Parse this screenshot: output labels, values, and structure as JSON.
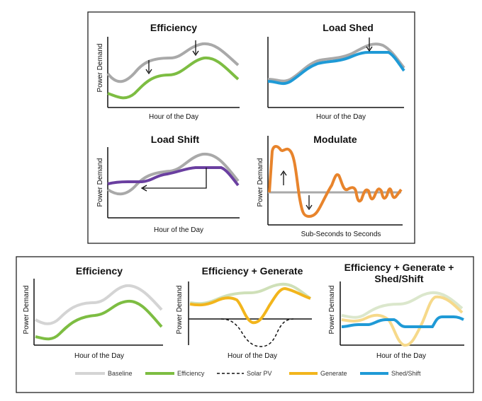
{
  "top": {
    "panels": [
      {
        "title": "Efficiency",
        "ylabel": "Power Demand",
        "xlabel": "Hour of the Day"
      },
      {
        "title": "Load Shed",
        "ylabel": "",
        "xlabel": "Hour of the Day"
      },
      {
        "title": "Load Shift",
        "ylabel": "Power Demand",
        "xlabel": "Hour of the Day"
      },
      {
        "title": "Modulate",
        "ylabel": "Power Demand",
        "xlabel": "Sub-Seconds to Seconds"
      }
    ]
  },
  "bottom": {
    "panels": [
      {
        "title": "Efficiency",
        "title2": "",
        "ylabel": "Power Demand",
        "xlabel": "Hour of the Day"
      },
      {
        "title": "Efficiency + Generate",
        "title2": "",
        "ylabel": "Power Demand",
        "xlabel": "Hour of the Day"
      },
      {
        "title": "Efficiency + Generate +",
        "title2": "Shed/Shift",
        "ylabel": "Power Demand",
        "xlabel": "Hour of the Day"
      }
    ],
    "legend": [
      {
        "label": "Baseline",
        "color": "#d4d4d4",
        "style": "solid"
      },
      {
        "label": "Efficiency",
        "color": "#7dbd42",
        "style": "solid"
      },
      {
        "label": "Solar PV",
        "color": "#111111",
        "style": "dashed"
      },
      {
        "label": "Generate",
        "color": "#f2b51c",
        "style": "solid"
      },
      {
        "label": "Shed/Shift",
        "color": "#1f9ad6",
        "style": "solid"
      }
    ]
  },
  "colors": {
    "baseline_top": "#a9a9a9",
    "efficiency": "#7dbd42",
    "shed": "#1f9ad6",
    "shift": "#6a3fa0",
    "modulate": "#e8842c",
    "generate": "#f2b51c",
    "baseline_light": "#d4d4d4"
  }
}
